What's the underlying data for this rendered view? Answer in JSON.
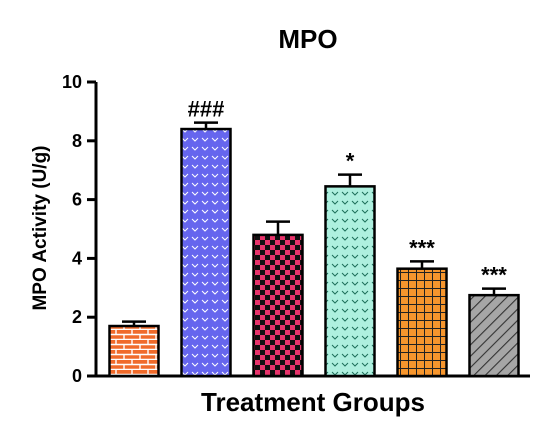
{
  "chart_data": {
    "type": "bar",
    "title": "MPO",
    "xlabel": "Treatment Groups",
    "ylabel": "MPO Activity (U/g)",
    "ylim": [
      0,
      10
    ],
    "yticks": [
      "0",
      "2",
      "4",
      "6",
      "8",
      "10"
    ],
    "values": [
      1.7,
      8.4,
      4.8,
      6.45,
      3.65,
      2.75
    ],
    "errors": [
      0.15,
      0.22,
      0.45,
      0.4,
      0.25,
      0.22
    ],
    "annotations": [
      "",
      "###",
      "",
      "*",
      "***",
      "***"
    ],
    "colors": [
      "#f06a2a",
      "#6666ee",
      "#e8336b",
      "#aef0df",
      "#f7962d",
      "#a6a6a6"
    ],
    "patterns": [
      "brick",
      "chevron",
      "checker",
      "chevron",
      "grid",
      "diagonal"
    ],
    "grid": false
  }
}
